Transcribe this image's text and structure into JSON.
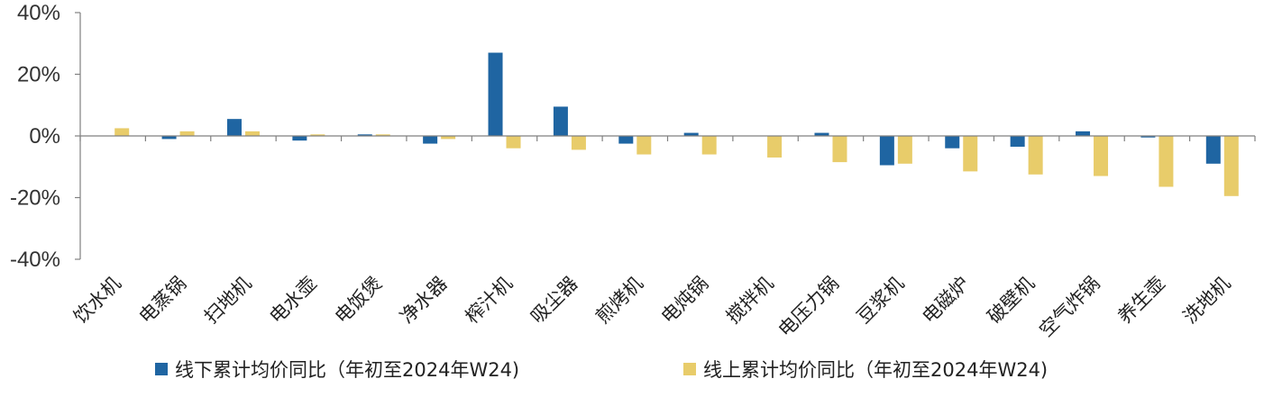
{
  "chart_data": {
    "type": "bar",
    "categories": [
      "饮水机",
      "电蒸锅",
      "扫地机",
      "电水壶",
      "电饭煲",
      "净水器",
      "榨汁机",
      "吸尘器",
      "煎烤机",
      "电炖锅",
      "搅拌机",
      "电压力锅",
      "豆浆机",
      "电磁炉",
      "破壁机",
      "空气炸锅",
      "养生壶",
      "洗地机"
    ],
    "series": [
      {
        "name": "线下累计均价同比（年初至2024年W24)",
        "color": "#1f65a2",
        "values": [
          0.0,
          -1.0,
          5.5,
          -1.5,
          0.5,
          -2.5,
          27.0,
          9.5,
          -2.5,
          1.0,
          0.0,
          1.0,
          -9.5,
          -4.0,
          -3.5,
          1.5,
          -0.5,
          -9.0
        ]
      },
      {
        "name": "线上累计均价同比（年初至2024年W24)",
        "color": "#e8cc6a",
        "values": [
          2.5,
          1.5,
          1.5,
          0.5,
          0.5,
          -1.0,
          -4.0,
          -4.5,
          -6.0,
          -6.0,
          -7.0,
          -8.5,
          -9.0,
          -11.5,
          -12.5,
          -13.0,
          -16.5,
          -19.5
        ]
      }
    ],
    "yticks": [
      "40%",
      "20%",
      "0%",
      "-20%",
      "-40%"
    ],
    "ytick_values": [
      40,
      20,
      0,
      -20,
      -40
    ],
    "ylim": [
      -40,
      40
    ],
    "grid": false,
    "legend_position": "bottom"
  }
}
